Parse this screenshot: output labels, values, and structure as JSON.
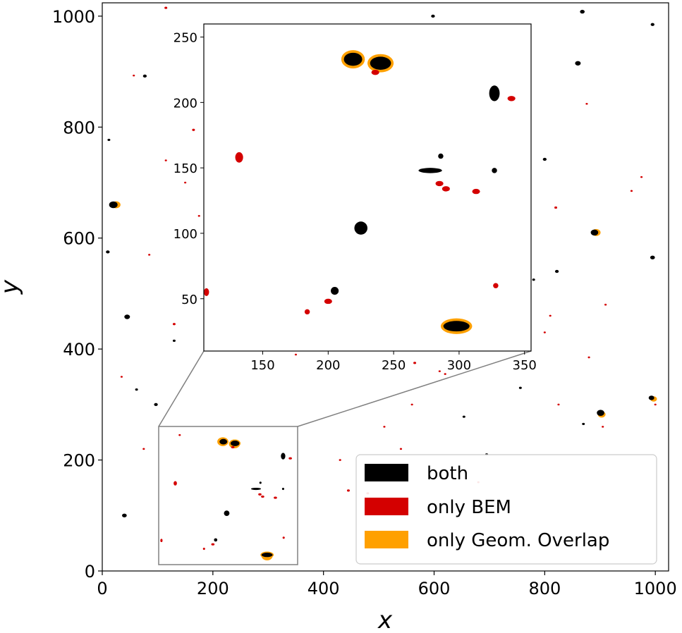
{
  "chart_data": {
    "type": "scatter",
    "xlabel": "x",
    "ylabel": "y",
    "xlim": [
      0,
      1024
    ],
    "ylim": [
      0,
      1024
    ],
    "xticks": [
      0,
      200,
      400,
      600,
      800,
      1000
    ],
    "yticks": [
      0,
      200,
      400,
      600,
      800,
      1000
    ],
    "grid": false,
    "legend_position": "lower right",
    "colors": {
      "both": "#000000",
      "only_bem": "#d40000",
      "only_geom": "#ffa000",
      "inset_frame": "#808080"
    },
    "series": [
      {
        "name": "both",
        "color": "#000000",
        "blobs": [
          {
            "x": 598,
            "y": 1000,
            "r": 4
          },
          {
            "x": 868,
            "y": 1008,
            "r": 5
          },
          {
            "x": 995,
            "y": 985,
            "r": 4
          },
          {
            "x": 77,
            "y": 892,
            "r": 4
          },
          {
            "x": 860,
            "y": 915,
            "r": 6
          },
          {
            "x": 12,
            "y": 777,
            "r": 3
          },
          {
            "x": 20,
            "y": 660,
            "r": 9
          },
          {
            "x": 890,
            "y": 610,
            "r": 8
          },
          {
            "x": 995,
            "y": 565,
            "r": 5
          },
          {
            "x": 10,
            "y": 575,
            "r": 4
          },
          {
            "x": 45,
            "y": 458,
            "r": 6
          },
          {
            "x": 130,
            "y": 415,
            "r": 3
          },
          {
            "x": 822,
            "y": 540,
            "r": 4
          },
          {
            "x": 800,
            "y": 742,
            "r": 4
          },
          {
            "x": 993,
            "y": 312,
            "r": 6
          },
          {
            "x": 901,
            "y": 285,
            "r": 8
          },
          {
            "x": 870,
            "y": 265,
            "r": 3
          },
          {
            "x": 97,
            "y": 300,
            "r": 4
          },
          {
            "x": 62,
            "y": 327,
            "r": 3
          },
          {
            "x": 654,
            "y": 278,
            "r": 3
          },
          {
            "x": 780,
            "y": 525,
            "r": 3
          },
          {
            "x": 40,
            "y": 100,
            "r": 5
          },
          {
            "x": 756,
            "y": 330,
            "r": 3
          },
          {
            "x": 695,
            "y": 210,
            "r": 3
          }
        ]
      },
      {
        "name": "only BEM",
        "color": "#d40000",
        "blobs": [
          {
            "x": 115,
            "y": 1015,
            "r": 3
          },
          {
            "x": 57,
            "y": 893,
            "r": 2
          },
          {
            "x": 165,
            "y": 795,
            "r": 3
          },
          {
            "x": 115,
            "y": 740,
            "r": 2
          },
          {
            "x": 150,
            "y": 700,
            "r": 2
          },
          {
            "x": 175,
            "y": 640,
            "r": 2
          },
          {
            "x": 85,
            "y": 570,
            "r": 2
          },
          {
            "x": 130,
            "y": 445,
            "r": 3
          },
          {
            "x": 185,
            "y": 412,
            "r": 2
          },
          {
            "x": 350,
            "y": 390,
            "r": 2
          },
          {
            "x": 565,
            "y": 375,
            "r": 3
          },
          {
            "x": 620,
            "y": 355,
            "r": 2
          },
          {
            "x": 800,
            "y": 430,
            "r": 2
          },
          {
            "x": 810,
            "y": 460,
            "r": 2
          },
          {
            "x": 880,
            "y": 385,
            "r": 2
          },
          {
            "x": 745,
            "y": 620,
            "r": 2
          },
          {
            "x": 820,
            "y": 655,
            "r": 3
          },
          {
            "x": 957,
            "y": 685,
            "r": 2
          },
          {
            "x": 975,
            "y": 710,
            "r": 2
          },
          {
            "x": 876,
            "y": 842,
            "r": 2
          },
          {
            "x": 910,
            "y": 480,
            "r": 2
          },
          {
            "x": 905,
            "y": 260,
            "r": 2
          },
          {
            "x": 825,
            "y": 300,
            "r": 2
          },
          {
            "x": 510,
            "y": 260,
            "r": 2
          },
          {
            "x": 540,
            "y": 220,
            "r": 2
          },
          {
            "x": 480,
            "y": 140,
            "r": 3
          },
          {
            "x": 445,
            "y": 145,
            "r": 3
          },
          {
            "x": 430,
            "y": 200,
            "r": 2
          },
          {
            "x": 35,
            "y": 350,
            "r": 2
          },
          {
            "x": 75,
            "y": 220,
            "r": 2
          },
          {
            "x": 610,
            "y": 360,
            "r": 2
          },
          {
            "x": 140,
            "y": 245,
            "r": 2
          },
          {
            "x": 560,
            "y": 300,
            "r": 2
          },
          {
            "x": 680,
            "y": 160,
            "r": 2
          },
          {
            "x": 1000,
            "y": 300,
            "r": 2
          }
        ]
      },
      {
        "name": "only Geom. Overlap",
        "color": "#ffa000",
        "blobs": [
          {
            "x": 218,
            "y": 233,
            "r": 10
          },
          {
            "x": 239,
            "y": 229,
            "r": 10
          },
          {
            "x": 298,
            "y": 27,
            "r": 10
          },
          {
            "x": 25,
            "y": 660,
            "r": 8
          },
          {
            "x": 893,
            "y": 610,
            "r": 8
          },
          {
            "x": 903,
            "y": 282,
            "r": 7
          },
          {
            "x": 997,
            "y": 310,
            "r": 6
          }
        ]
      }
    ],
    "inset": {
      "xlim": [
        105,
        355
      ],
      "ylim": [
        10,
        260
      ],
      "xticks": [
        150,
        200,
        250,
        300,
        350
      ],
      "yticks": [
        50,
        100,
        150,
        200,
        250
      ],
      "blobs": [
        {
          "series": "only Geom. Overlap",
          "x": 219,
          "y": 233,
          "rx": 9,
          "ry": 7
        },
        {
          "series": "only Geom. Overlap",
          "x": 240,
          "y": 230,
          "rx": 10,
          "ry": 7
        },
        {
          "series": "only Geom. Overlap",
          "x": 298,
          "y": 29,
          "rx": 12,
          "ry": 6
        },
        {
          "series": "both",
          "x": 219,
          "y": 233,
          "rx": 7,
          "ry": 5
        },
        {
          "series": "both",
          "x": 240,
          "y": 230,
          "rx": 8,
          "ry": 5
        },
        {
          "series": "both",
          "x": 298,
          "y": 29,
          "rx": 10,
          "ry": 4
        },
        {
          "series": "both",
          "x": 225,
          "y": 104,
          "rx": 5,
          "ry": 5
        },
        {
          "series": "both",
          "x": 286,
          "y": 159,
          "rx": 2,
          "ry": 2
        },
        {
          "series": "both",
          "x": 278,
          "y": 148,
          "rx": 9,
          "ry": 2
        },
        {
          "series": "both",
          "x": 327,
          "y": 207,
          "rx": 4,
          "ry": 6
        },
        {
          "series": "both",
          "x": 327,
          "y": 148,
          "rx": 2,
          "ry": 2
        },
        {
          "series": "both",
          "x": 205,
          "y": 56,
          "rx": 3,
          "ry": 3
        },
        {
          "series": "only BEM",
          "x": 132,
          "y": 158,
          "rx": 3,
          "ry": 4
        },
        {
          "series": "only BEM",
          "x": 107,
          "y": 55,
          "rx": 2,
          "ry": 3
        },
        {
          "series": "only BEM",
          "x": 200,
          "y": 48,
          "rx": 3,
          "ry": 2
        },
        {
          "series": "only BEM",
          "x": 290,
          "y": 134,
          "rx": 3,
          "ry": 2
        },
        {
          "series": "only BEM",
          "x": 313,
          "y": 132,
          "rx": 3,
          "ry": 2
        },
        {
          "series": "only BEM",
          "x": 285,
          "y": 138,
          "rx": 3,
          "ry": 2
        },
        {
          "series": "only BEM",
          "x": 236,
          "y": 223,
          "rx": 3,
          "ry": 2
        },
        {
          "series": "only BEM",
          "x": 340,
          "y": 203,
          "rx": 3,
          "ry": 2
        },
        {
          "series": "only BEM",
          "x": 328,
          "y": 60,
          "rx": 2,
          "ry": 2
        },
        {
          "series": "only BEM",
          "x": 184,
          "y": 40,
          "rx": 2,
          "ry": 2
        }
      ]
    },
    "legend": [
      {
        "label": "both",
        "color": "#000000"
      },
      {
        "label": "only BEM",
        "color": "#d40000"
      },
      {
        "label": "only Geom. Overlap",
        "color": "#ffa000"
      }
    ]
  }
}
